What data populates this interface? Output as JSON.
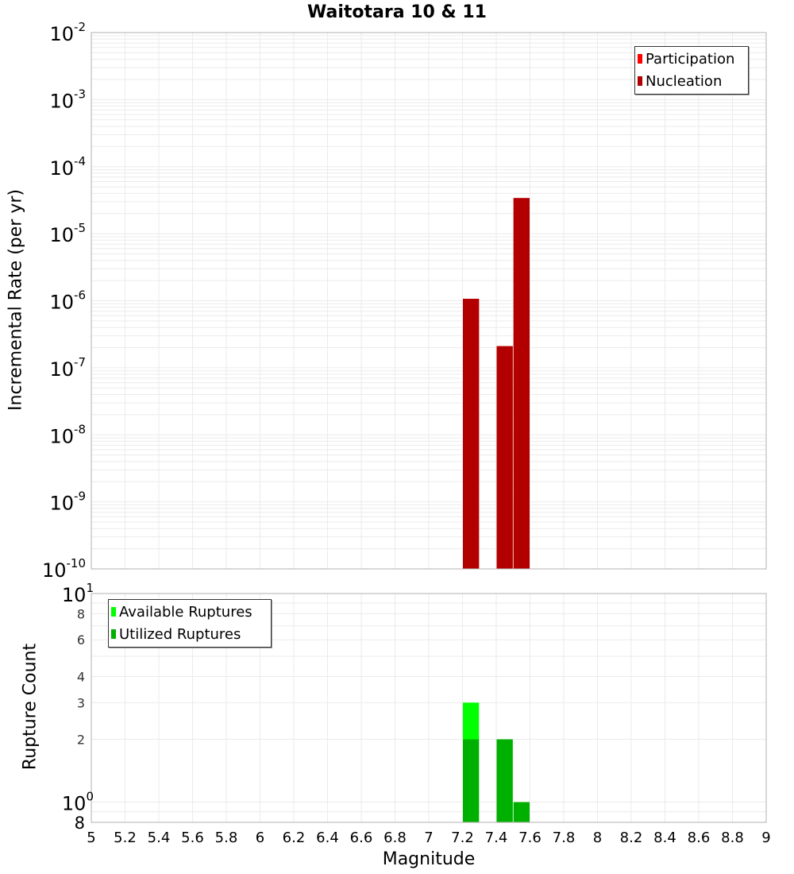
{
  "chart_data": [
    {
      "type": "bar",
      "title": "Waitotara 10 & 11",
      "xlabel": "Magnitude",
      "ylabel": "Incremental Rate (per yr)",
      "yscale": "log",
      "ylim": [
        1e-10,
        0.01
      ],
      "xlim": [
        5,
        9
      ],
      "grid": true,
      "legend_position": "top-right",
      "y_tick_labels": [
        "10^-2",
        "10^-3",
        "10^-4",
        "10^-5",
        "10^-6",
        "10^-7",
        "10^-8",
        "10^-9",
        "10^-10"
      ],
      "x_tick_labels": [
        "5",
        "5.2",
        "5.4",
        "5.6",
        "5.8",
        "6",
        "6.2",
        "6.4",
        "6.6",
        "6.8",
        "7",
        "7.2",
        "7.4",
        "7.6",
        "7.8",
        "8",
        "8.2",
        "8.4",
        "8.6",
        "8.8",
        "9"
      ],
      "series": [
        {
          "name": "Participation",
          "color": "#ff0000",
          "x": [
            7.25,
            7.45,
            7.55
          ],
          "values": [
            1.07e-06,
            2.1e-07,
            3.4e-05
          ]
        },
        {
          "name": "Nucleation",
          "color": "#b20000",
          "x": [
            7.25,
            7.45,
            7.55
          ],
          "values": [
            1.07e-06,
            2.1e-07,
            3.4e-05
          ]
        }
      ]
    },
    {
      "type": "bar",
      "title": "",
      "xlabel": "Magnitude",
      "ylabel": "Rupture Count",
      "yscale": "log",
      "ylim": [
        0.8,
        10
      ],
      "xlim": [
        5,
        9
      ],
      "grid": true,
      "legend_position": "top-left",
      "y_tick_labels": [
        "10^1",
        "8",
        "6",
        "4",
        "3",
        "2",
        "10^0",
        "8"
      ],
      "x_tick_labels": [
        "5",
        "5.2",
        "5.4",
        "5.6",
        "5.8",
        "6",
        "6.2",
        "6.4",
        "6.6",
        "6.8",
        "7",
        "7.2",
        "7.4",
        "7.6",
        "7.8",
        "8",
        "8.2",
        "8.4",
        "8.6",
        "8.8",
        "9"
      ],
      "series": [
        {
          "name": "Available Ruptures",
          "color": "#00ff00",
          "x": [
            7.25,
            7.45,
            7.55
          ],
          "values": [
            3,
            2,
            1
          ]
        },
        {
          "name": "Utilized Ruptures",
          "color": "#00b000",
          "x": [
            7.25,
            7.45,
            7.55
          ],
          "values": [
            2,
            2,
            1
          ]
        }
      ]
    }
  ],
  "header": {
    "title": "Waitotara 10 & 11"
  },
  "top_chart": {
    "ylabel": "Incremental Rate (per yr)",
    "legend": [
      {
        "label": "Participation",
        "color": "#ff0000"
      },
      {
        "label": "Nucleation",
        "color": "#b20000"
      }
    ]
  },
  "bottom_chart": {
    "ylabel": "Rupture Count",
    "xlabel": "Magnitude",
    "legend": [
      {
        "label": "Available Ruptures",
        "color": "#00ff00"
      },
      {
        "label": "Utilized Ruptures",
        "color": "#00b000"
      }
    ]
  }
}
